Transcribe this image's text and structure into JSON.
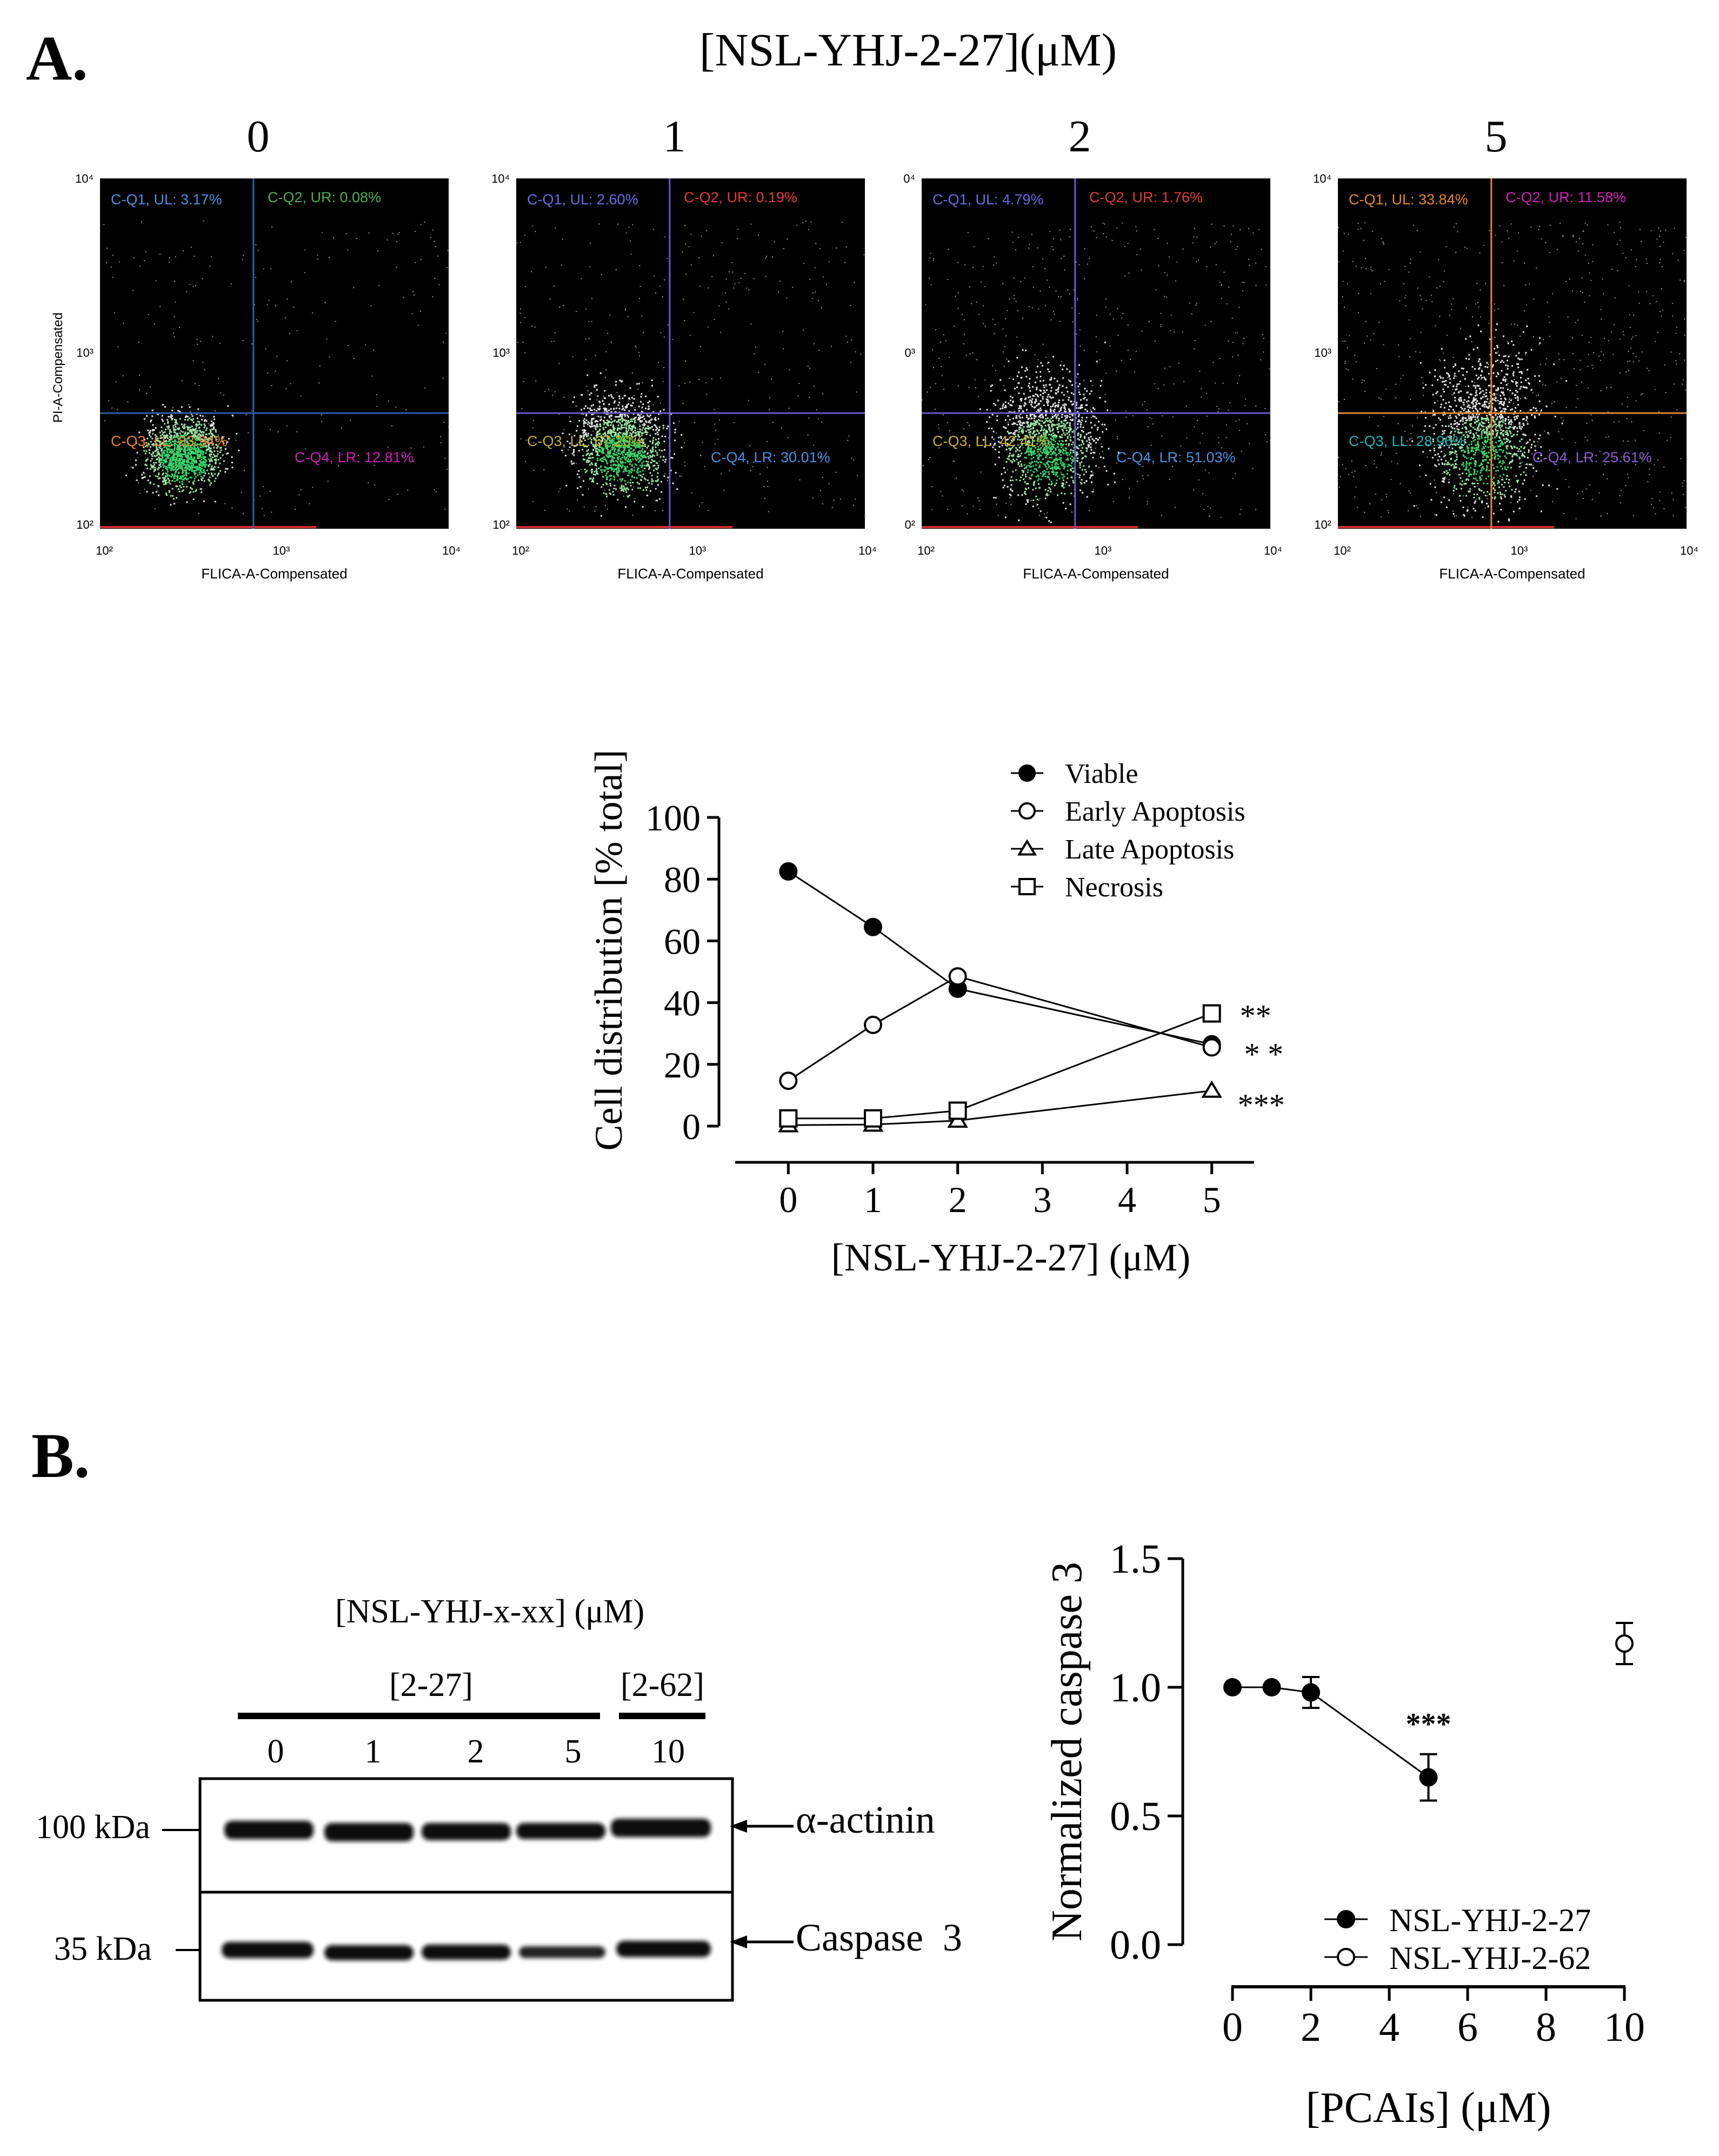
{
  "panel_a": {
    "letter": "A.",
    "main_title": "[NSL-YHJ-2-27](μM)",
    "flow_plots": [
      {
        "conc": "0",
        "ylabel": "PI-A-Compensated",
        "xlabel": "FLICA-A-Compensated",
        "x_ticks": [
          "10²",
          "10³",
          "10⁴"
        ],
        "y_ticks": [
          "10⁴",
          "10³",
          "10²"
        ],
        "gate_color": "#2e5fa8",
        "q1": "C-Q1, UL: 3.17%",
        "q2": "C-Q2, UR: 0.08%",
        "q3": "C-Q3, LL: 83.94%",
        "q4": "C-Q4, LR: 12.81%",
        "q_colors": [
          "#4a90e2",
          "#4caf50",
          "#e8862a",
          "#d21bb7"
        ],
        "q1_frac": 0.0317,
        "q2_frac": 0.0008,
        "q3_frac": 0.8394,
        "q4_frac": 0.1281
      },
      {
        "conc": "1",
        "ylabel": "",
        "xlabel": "FLICA-A-Compensated",
        "x_ticks": [
          "10²",
          "10³",
          "10⁴"
        ],
        "y_ticks": [
          "10⁴",
          "10³",
          "10²"
        ],
        "gate_color": "#6a5acd",
        "q1": "C-Q1, UL: 2.60%",
        "q2": "C-Q2, UR: 0.19%",
        "q3": "C-Q3, LL: 67.20%",
        "q4": "C-Q4, LR: 30.01%",
        "q_colors": [
          "#6a6ae8",
          "#e53935",
          "#c9b21e",
          "#4a90e2"
        ],
        "q1_frac": 0.026,
        "q2_frac": 0.0019,
        "q3_frac": 0.672,
        "q4_frac": 0.3001
      },
      {
        "conc": "2",
        "ylabel": "",
        "xlabel": "FLICA-A-Compensated",
        "x_ticks": [
          "10²",
          "10³",
          "10⁴"
        ],
        "y_ticks": [
          "0⁴",
          "0³",
          "0²"
        ],
        "gate_color": "#6a5acd",
        "q1": "C-Q1, UL: 4.79%",
        "q2": "C-Q2, UR: 1.76%",
        "q3": "C-Q3, LL: 42.41%",
        "q4": "C-Q4, LR: 51.03%",
        "q_colors": [
          "#6a6ae8",
          "#e53935",
          "#c9b21e",
          "#4a90e2"
        ],
        "q1_frac": 0.0479,
        "q2_frac": 0.0176,
        "q3_frac": 0.4241,
        "q4_frac": 0.5103
      },
      {
        "conc": "5",
        "ylabel": "",
        "xlabel": "FLICA-A-Compensated",
        "x_ticks": [
          "10²",
          "10³",
          "10⁴"
        ],
        "y_ticks": [
          "10⁴",
          "10³",
          "10²"
        ],
        "gate_color": "#e8862a",
        "q1": "C-Q1, UL: 33.84%",
        "q2": "C-Q2, UR: 11.58%",
        "q3": "C-Q3, LL: 28.96%",
        "q4": "C-Q4, LR: 25.61%",
        "q_colors": [
          "#e8862a",
          "#d21bb7",
          "#18b5b5",
          "#8a5ad6"
        ],
        "q1_frac": 0.3384,
        "q2_frac": 0.1158,
        "q3_frac": 0.2896,
        "q4_frac": 0.2561
      }
    ]
  },
  "chart_data": [
    {
      "type": "line",
      "ylabel": "Cell distribution [% total]",
      "xlabel": "[NSL-YHJ-2-27] (μM)",
      "xlim": [
        -0.5,
        5.5
      ],
      "ylim": [
        0,
        100
      ],
      "x_ticks": [
        0,
        1,
        2,
        3,
        4,
        5
      ],
      "y_ticks": [
        0,
        20,
        40,
        60,
        80,
        100
      ],
      "x": [
        0,
        1,
        2,
        5
      ],
      "legend_position": "top-right",
      "series": [
        {
          "name": "Viable",
          "marker": "filled-circle",
          "values": [
            82.5,
            64.5,
            44.5,
            26.5
          ],
          "err": [
            0,
            0,
            0,
            3
          ]
        },
        {
          "name": "Early Apoptosis",
          "marker": "open-circle",
          "values": [
            14.7,
            32.8,
            48.5,
            25.5
          ],
          "err": [
            0,
            0,
            0,
            0
          ]
        },
        {
          "name": "Late Apoptosis",
          "marker": "open-triangle",
          "values": [
            0.3,
            0.5,
            1.8,
            11.5
          ],
          "err": [
            0,
            0,
            0,
            0
          ]
        },
        {
          "name": "Necrosis",
          "marker": "open-square",
          "values": [
            2.5,
            2.5,
            5.0,
            36.5
          ],
          "err": [
            0,
            0,
            0,
            0
          ]
        }
      ],
      "annotations": [
        {
          "text": "**",
          "series": "Necrosis"
        },
        {
          "text": "* *",
          "series": "Viable"
        },
        {
          "text": "***",
          "series": "Late Apoptosis"
        }
      ]
    },
    {
      "type": "scatter",
      "ylabel": "Normalized caspase 3",
      "xlabel": "[PCAIs] (μM)",
      "xlim": [
        0,
        10
      ],
      "ylim": [
        0,
        1.5
      ],
      "x_ticks": [
        0,
        2,
        4,
        6,
        8,
        10
      ],
      "y_ticks": [
        "0.0",
        "0.5",
        "1.0",
        "1.5"
      ],
      "legend_position": "bottom-right",
      "series": [
        {
          "name": "NSL-YHJ-2-27",
          "marker": "filled-circle",
          "x": [
            0,
            1,
            2,
            5
          ],
          "values": [
            1.0,
            1.0,
            0.98,
            0.65
          ],
          "err": [
            0,
            0,
            0.06,
            0.09
          ],
          "connected": true
        },
        {
          "name": "NSL-YHJ-2-62",
          "marker": "open-circle",
          "x": [
            10
          ],
          "values": [
            1.17
          ],
          "err": [
            0.08
          ],
          "connected": false
        }
      ],
      "annotations": [
        {
          "text": "***",
          "series": "NSL-YHJ-2-27"
        }
      ]
    }
  ],
  "panel_b": {
    "letter": "B.",
    "blot_title": "[NSL-YHJ-x-xx]  (μM)",
    "group1_label": "[2-27]",
    "group2_label": "[2-62]",
    "lanes": [
      "0",
      "1",
      "2",
      "5",
      "10"
    ],
    "mw_top": "100 kDa",
    "mw_bottom": "35 kDa",
    "band_top": "α-actinin",
    "band_bottom": "Caspase  3"
  }
}
